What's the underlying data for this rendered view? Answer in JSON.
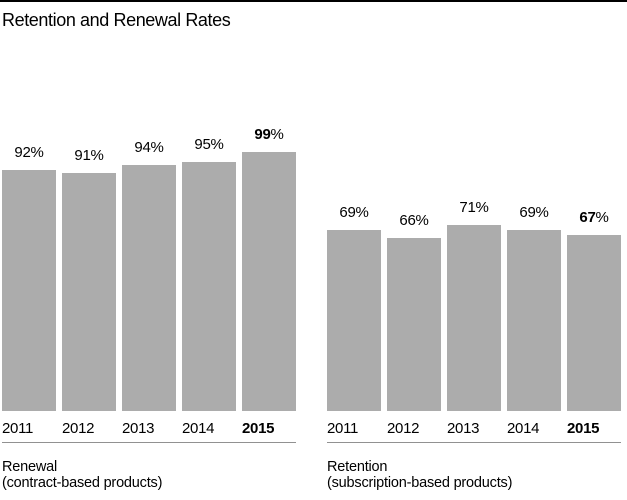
{
  "title": "Retention and Renewal Rates",
  "colors": {
    "bar": "#ACACAC",
    "top_rule": "#000000",
    "baseline_rule": "#919191",
    "text": "#000000",
    "background": "#ffffff"
  },
  "chart_data": [
    {
      "type": "bar",
      "name": "Renewal",
      "subtitle": "(contract-based products)",
      "categories": [
        "2011",
        "2012",
        "2013",
        "2014",
        "2015"
      ],
      "values": [
        92,
        91,
        94,
        95,
        99
      ],
      "value_labels": [
        "92%",
        "91%",
        "94%",
        "95%",
        "99%"
      ],
      "unit": "%",
      "ylim": [
        0,
        100
      ],
      "highlight_index": 4,
      "grid": false,
      "legend_position": "none",
      "xlabel": "",
      "ylabel": ""
    },
    {
      "type": "bar",
      "name": "Retention",
      "subtitle": "(subscription-based products)",
      "categories": [
        "2011",
        "2012",
        "2013",
        "2014",
        "2015"
      ],
      "values": [
        69,
        66,
        71,
        69,
        67
      ],
      "value_labels": [
        "69%",
        "66%",
        "71%",
        "69%",
        "67%"
      ],
      "unit": "%",
      "ylim": [
        0,
        100
      ],
      "highlight_index": 4,
      "grid": false,
      "legend_position": "none",
      "xlabel": "",
      "ylabel": ""
    }
  ]
}
